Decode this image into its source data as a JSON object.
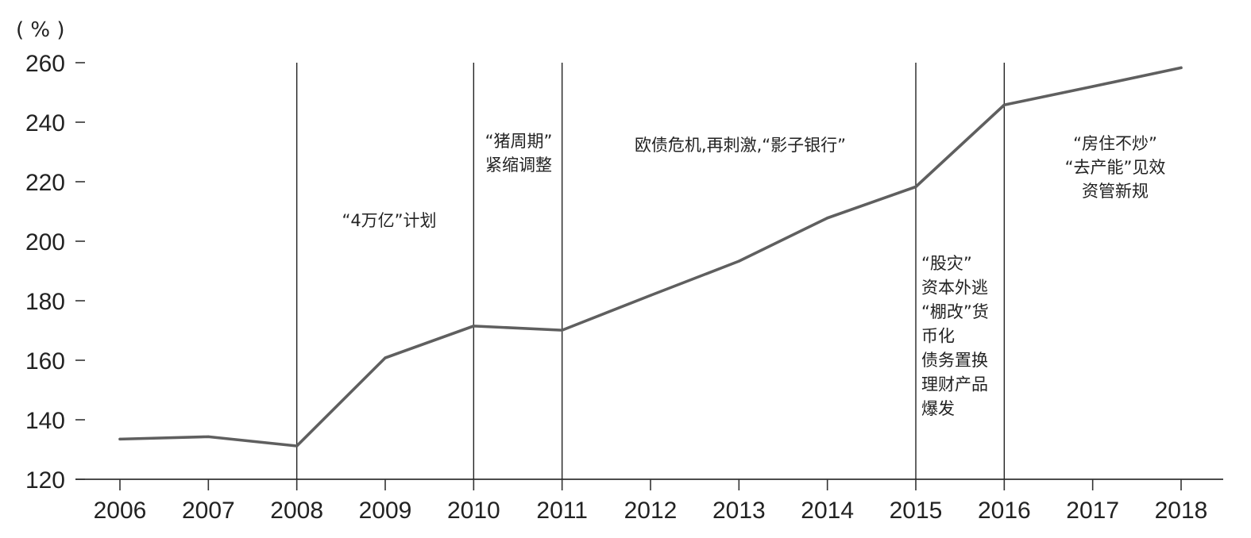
{
  "chart_data": {
    "type": "line",
    "ylabel": "( % )",
    "ylim": [
      120,
      260
    ],
    "yticks": [
      120,
      140,
      160,
      180,
      200,
      220,
      240,
      260
    ],
    "x": [
      "2006",
      "2007",
      "2008",
      "2009",
      "2010",
      "2011",
      "2012",
      "2013",
      "2014",
      "2015",
      "2016",
      "2017",
      "2018"
    ],
    "series": [
      {
        "values": [
          133.5,
          134.3,
          131.2,
          160.8,
          171.5,
          170.1,
          181.8,
          193.3,
          207.8,
          218.3,
          245.8,
          252.0,
          258.3
        ],
        "color": "#5f5f5f"
      }
    ],
    "dividers": [
      "2008",
      "2010",
      "2011",
      "2015",
      "2016"
    ],
    "annotations": [
      {
        "lines": [
          "“4万亿”计划"
        ]
      },
      {
        "lines": [
          "“猪周期”",
          "紧缩调整"
        ]
      },
      {
        "lines": [
          "欧债危机,再刺激,“影子银行”"
        ]
      },
      {
        "lines": [
          "“股灾”",
          "资本外逃",
          "“棚改”货",
          "币化",
          "债务置换",
          "理财产品",
          "爆发"
        ]
      },
      {
        "lines": [
          "“房住不炒”",
          "“去产能”见效",
          "资管新规"
        ]
      }
    ],
    "grid": false,
    "legend": "none"
  }
}
